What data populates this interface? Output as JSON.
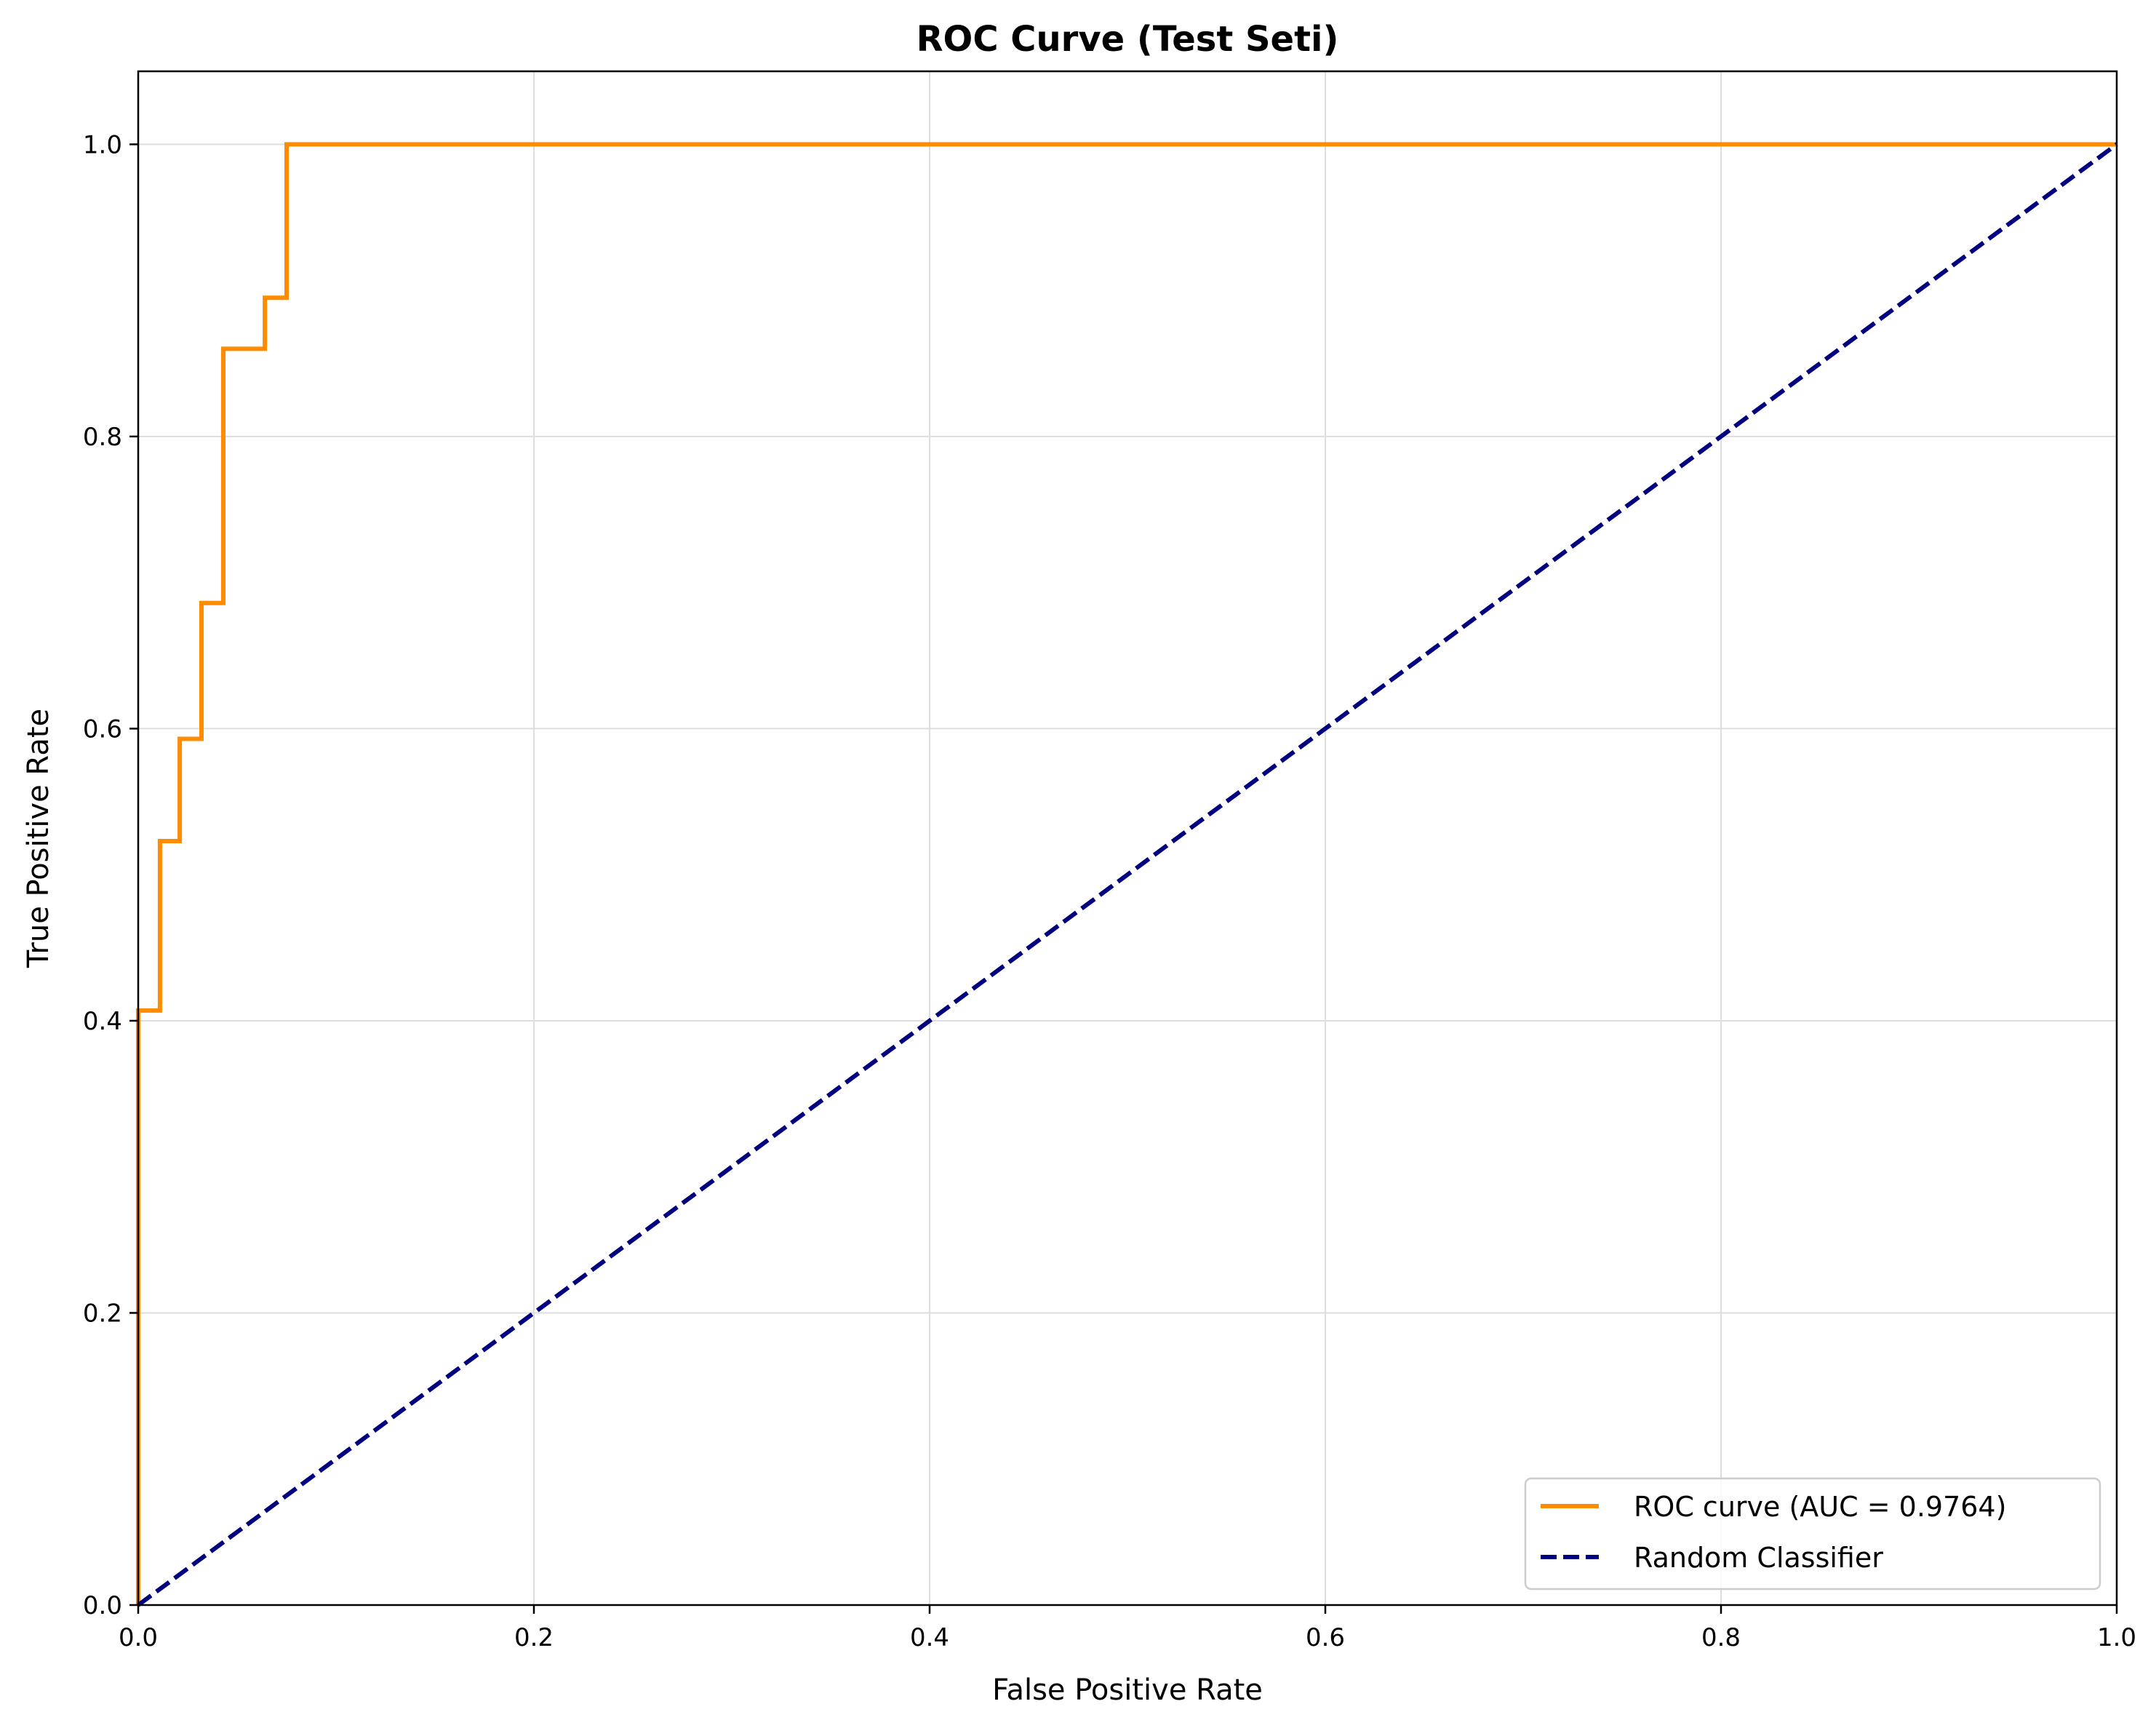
{
  "chart_data": {
    "type": "line",
    "title": "ROC Curve (Test Seti)",
    "xlabel": "False Positive Rate",
    "ylabel": "True Positive Rate",
    "xlim": [
      0.0,
      1.0
    ],
    "ylim": [
      0.0,
      1.05
    ],
    "xticks": [
      0.0,
      0.2,
      0.4,
      0.6,
      0.8,
      1.0
    ],
    "yticks": [
      0.0,
      0.2,
      0.4,
      0.6,
      0.8,
      1.0
    ],
    "xtick_labels": [
      "0.0",
      "0.2",
      "0.4",
      "0.6",
      "0.8",
      "1.0"
    ],
    "ytick_labels": [
      "0.0",
      "0.2",
      "0.4",
      "0.6",
      "0.8",
      "1.0"
    ],
    "grid": true,
    "legend_position": "lower-right",
    "series": [
      {
        "name": "ROC curve (AUC = 0.9764)",
        "color": "#ff8c00",
        "style": "solid",
        "x": [
          0.0,
          0.0,
          0.011,
          0.011,
          0.021,
          0.021,
          0.032,
          0.032,
          0.043,
          0.043,
          0.064,
          0.064,
          0.075,
          0.075,
          1.0
        ],
        "y": [
          0.0,
          0.407,
          0.407,
          0.523,
          0.523,
          0.593,
          0.593,
          0.686,
          0.686,
          0.86,
          0.86,
          0.895,
          0.895,
          1.0,
          1.0
        ]
      },
      {
        "name": "Random Classifier",
        "color": "#000080",
        "style": "dashed",
        "x": [
          0.0,
          1.0
        ],
        "y": [
          0.0,
          1.0
        ]
      }
    ]
  }
}
